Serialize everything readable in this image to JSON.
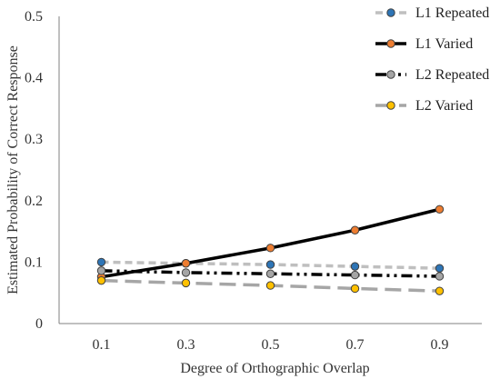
{
  "chart_data": {
    "type": "line",
    "title": "",
    "xlabel": "Degree of Orthographic Overlap",
    "ylabel": "Estimated Probability of Correct Response",
    "x": [
      0.1,
      0.3,
      0.5,
      0.7,
      0.9
    ],
    "x_tick_labels": [
      "0.1",
      "0.3",
      "0.5",
      "0.7",
      "0.9"
    ],
    "xlim": [
      0,
      1.0
    ],
    "ylim": [
      0,
      0.5
    ],
    "y_ticks": [
      0,
      0.1,
      0.2,
      0.3,
      0.4,
      0.5
    ],
    "y_tick_labels": [
      "0",
      "0.1",
      "0.2",
      "0.3",
      "0.4",
      "0.5"
    ],
    "grid": false,
    "legend": "top-right",
    "series": [
      {
        "name": "L1 Repeated",
        "values": [
          0.1,
          0.098,
          0.096,
          0.093,
          0.09
        ],
        "line_color": "#bfbfbf",
        "marker_color": "#2e75b6",
        "line_style": "short-dash"
      },
      {
        "name": "L1 Varied",
        "values": [
          0.076,
          0.098,
          0.123,
          0.152,
          0.186
        ],
        "line_color": "#000000",
        "marker_color": "#ed7d31",
        "line_style": "solid"
      },
      {
        "name": "L2 Repeated",
        "values": [
          0.086,
          0.083,
          0.081,
          0.079,
          0.077
        ],
        "line_color": "#000000",
        "marker_color": "#a5a5a5",
        "line_style": "dash-dot-dot"
      },
      {
        "name": "L2 Varied",
        "values": [
          0.07,
          0.066,
          0.062,
          0.057,
          0.053
        ],
        "line_color": "#a6a6a6",
        "marker_color": "#ffc000",
        "line_style": "long-dash"
      }
    ]
  }
}
